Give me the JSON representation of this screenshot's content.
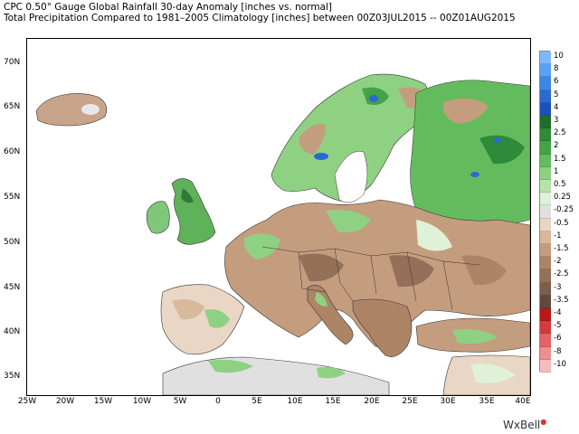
{
  "title_line1": "CPC 0.50° Gauge Global Rainfall 30-day Anomaly [inches vs. normal]",
  "title_line2": "Total Precipitation Compared to 1981–2005 Climatology [inches] between 00Z03JUL2015 -- 00Z01AUG2015",
  "y_ticks": [
    "70N",
    "65N",
    "60N",
    "55N",
    "50N",
    "45N",
    "40N",
    "35N"
  ],
  "x_ticks": [
    "25W",
    "20W",
    "15W",
    "10W",
    "5W",
    "0",
    "5E",
    "10E",
    "15E",
    "20E",
    "25E",
    "30E",
    "35E",
    "40E"
  ],
  "colorbar": {
    "labels": [
      "10",
      "8",
      "6",
      "5",
      "4",
      "3",
      "2.5",
      "2",
      "1.5",
      "1",
      "0.5",
      "0.25",
      "-0.25",
      "-0.5",
      "-1",
      "-1.5",
      "-2",
      "-2.5",
      "-3",
      "-3.5",
      "-4",
      "-5",
      "-6",
      "-8",
      "-10"
    ],
    "colors": [
      "#7fb8ff",
      "#5aa0f5",
      "#3c86e6",
      "#2a6ad0",
      "#1c52b8",
      "#1e6e2a",
      "#2f8a3a",
      "#43a348",
      "#64bb5e",
      "#8fd183",
      "#b7e3aa",
      "#dff1d6",
      "#e0e0e0",
      "#e9d6c4",
      "#d8b99c",
      "#c49d7e",
      "#ae8466",
      "#957058",
      "#7b5e4b",
      "#5f4a3d",
      "#b81818",
      "#d23c3c",
      "#e26464",
      "#ee9090",
      "#f6bcbc"
    ]
  },
  "brand": "WxBell"
}
